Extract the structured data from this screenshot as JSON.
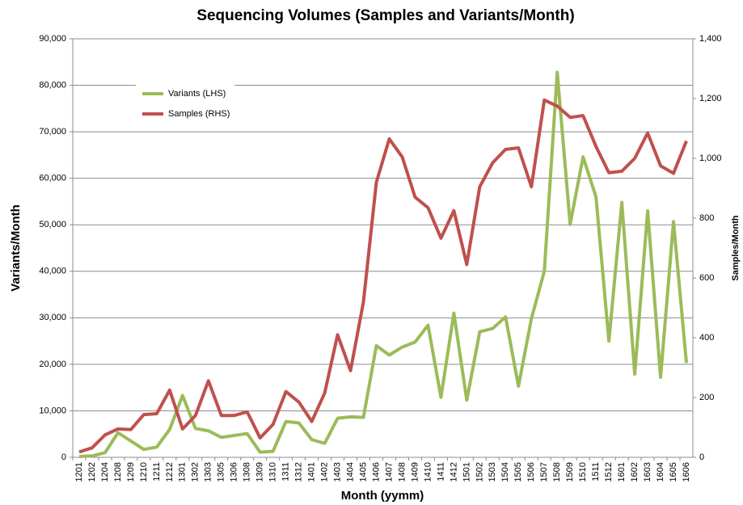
{
  "chart_data": {
    "type": "line",
    "title": "Sequencing Volumes (Samples and Variants/Month)",
    "x_label": "Month (yymm)",
    "y_label": "Variants/Month",
    "y2_label": "Samples/Month",
    "categories": [
      "1201",
      "1202",
      "1204",
      "1208",
      "1209",
      "1210",
      "1211",
      "1212",
      "1301",
      "1302",
      "1303",
      "1305",
      "1306",
      "1308",
      "1309",
      "1310",
      "1311",
      "1312",
      "1401",
      "1402",
      "1403",
      "1404",
      "1405",
      "1406",
      "1407",
      "1408",
      "1409",
      "1410",
      "1411",
      "1412",
      "1501",
      "1502",
      "1503",
      "1504",
      "1505",
      "1506",
      "1507",
      "1508",
      "1509",
      "1510",
      "1511",
      "1512",
      "1601",
      "1602",
      "1603",
      "1604",
      "1605",
      "1606"
    ],
    "series": [
      {
        "name": "Variants (LHS)",
        "color": "#9bbb59",
        "values": [
          200,
          300,
          1000,
          5300,
          3500,
          1700,
          2200,
          6000,
          13300,
          6200,
          5700,
          4300,
          4700,
          5100,
          1100,
          1300,
          7700,
          7400,
          3800,
          3000,
          8400,
          8700,
          8600,
          24000,
          22000,
          23700,
          24800,
          28400,
          12900,
          31000,
          12300,
          27000,
          27700,
          30200,
          15300,
          29800,
          40000,
          82800,
          50100,
          64600,
          56000,
          25000,
          54800,
          17900,
          53000,
          17200,
          50700,
          20300
        ]
      },
      {
        "name": "Samples (RHS)",
        "color": "#c0504d",
        "axis": "y2",
        "values": [
          18,
          32,
          75,
          95,
          93,
          143,
          146,
          225,
          95,
          140,
          256,
          140,
          140,
          152,
          65,
          110,
          220,
          185,
          120,
          215,
          410,
          290,
          520,
          920,
          1065,
          1005,
          870,
          835,
          733,
          825,
          645,
          905,
          985,
          1030,
          1035,
          905,
          1195,
          1175,
          1137,
          1143,
          1040,
          952,
          957,
          1000,
          1085,
          975,
          950,
          1058
        ]
      }
    ],
    "ylim": [
      0,
      90000
    ],
    "yticks": [
      0,
      {
        "value": 10000,
        "label": "10,000"
      },
      {
        "value": 20000,
        "label": "20,000"
      },
      {
        "value": 30000,
        "label": "30,000"
      },
      {
        "value": 40000,
        "label": "40,000"
      },
      {
        "value": 50000,
        "label": "50,000"
      },
      {
        "value": 60000,
        "label": "60,000"
      },
      {
        "value": 70000,
        "label": "70,000"
      },
      {
        "value": 80000,
        "label": "80,000"
      },
      {
        "value": 90000,
        "label": "90,000"
      }
    ],
    "y2lim": [
      0,
      1400
    ],
    "y2ticks": [
      0,
      200,
      400,
      600,
      800,
      {
        "value": 1000,
        "label": "1,000"
      },
      {
        "value": 1200,
        "label": "1,200"
      },
      {
        "value": 1400,
        "label": "1,400"
      }
    ],
    "grid": true,
    "legend": "upper left"
  }
}
